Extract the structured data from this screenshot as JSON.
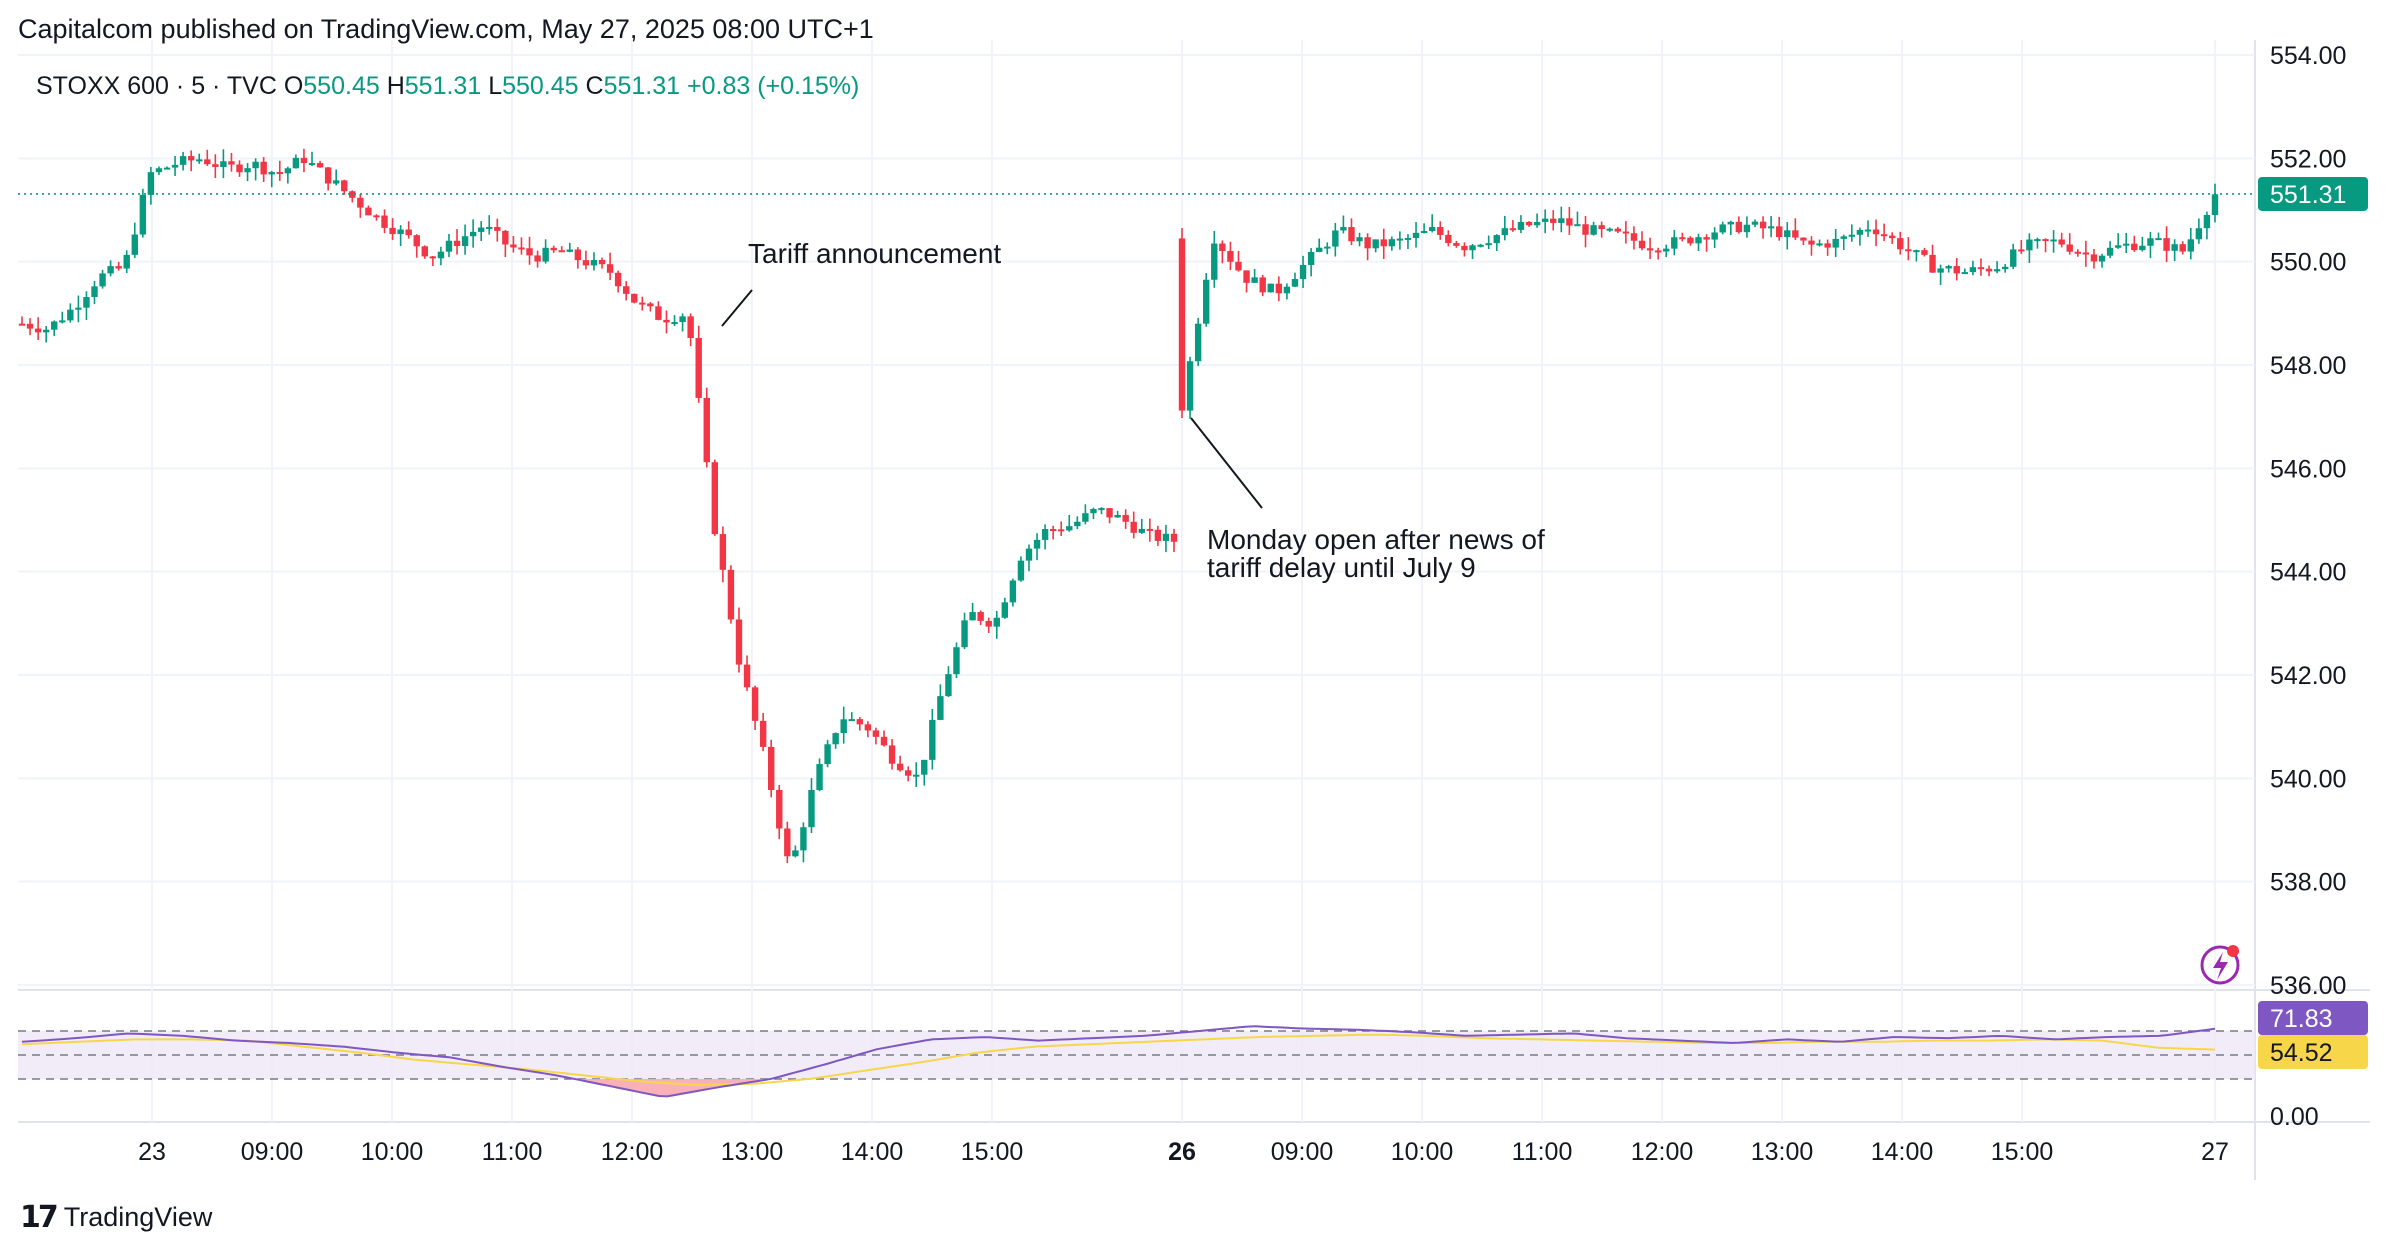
{
  "publisher_line": "Capitalcom published on TradingView.com, May 27, 2025 08:00 UTC+1",
  "branding": {
    "logo_icon": "tradingview-logo-icon",
    "name": "TradingView"
  },
  "ticker": {
    "symbol": "STOXX 600",
    "sep1": "·",
    "interval": "5",
    "sep2": "·",
    "source": "TVC",
    "open_label": "O",
    "open": "550.45",
    "high_label": "H",
    "high": "551.31",
    "low_label": "L",
    "low": "550.45",
    "close_label": "C",
    "close": "551.31",
    "change": "+0.83 (+0.15%)"
  },
  "colors": {
    "up": "#089981",
    "down": "#f23645",
    "rsi": "#7e57c2",
    "rsi_ma": "#f7d64a",
    "grid": "#f0f3fa"
  },
  "price_tag": "551.31",
  "rsi_tag": "71.83",
  "rsi_ma_tag": "54.52",
  "annotations": [
    {
      "id": "tariff-announcement",
      "text": [
        "Tariff announcement"
      ]
    },
    {
      "id": "monday-open",
      "text": [
        "Monday open after news of",
        "tariff delay until July 9"
      ]
    }
  ],
  "chart_data": {
    "type": "candlestick",
    "price_axis": {
      "ticks": [
        "554.00",
        "552.00",
        "550.00",
        "548.00",
        "546.00",
        "544.00",
        "542.00",
        "540.00",
        "538.00",
        "536.00"
      ],
      "range": [
        536,
        554
      ]
    },
    "rsi_axis": {
      "ticks": [
        "0.00"
      ],
      "levels": [
        70,
        50,
        30
      ]
    },
    "time_axis": [
      "23",
      "09:00",
      "10:00",
      "11:00",
      "12:00",
      "13:00",
      "14:00",
      "15:00",
      "26",
      "09:00",
      "10:00",
      "11:00",
      "12:00",
      "13:00",
      "14:00",
      "15:00",
      "27"
    ],
    "time_axis_bold": [
      false,
      false,
      false,
      false,
      false,
      false,
      false,
      false,
      true,
      false,
      false,
      false,
      false,
      false,
      false,
      false,
      false
    ],
    "session1_path": [
      548.8,
      548.7,
      549.1,
      549.7,
      549.9,
      551.7,
      551.9,
      552.0,
      551.8,
      551.9,
      551.7,
      552.0,
      551.6,
      551.2,
      550.8,
      550.5,
      550.1,
      550.4,
      550.7,
      550.3,
      550.1,
      550.2,
      550.0,
      549.8,
      549.2,
      548.9,
      549.0,
      545.0,
      542.3,
      540.4,
      538.2,
      540.0,
      541.2,
      541.0,
      540.4,
      540.0,
      541.8,
      543.2,
      543.0,
      544.3,
      544.8,
      544.9,
      545.2,
      545.0,
      544.7,
      544.6
    ],
    "session2_path": [
      547.2,
      550.5,
      549.7,
      549.4,
      550.0,
      550.6,
      550.3,
      550.4,
      550.6,
      550.3,
      550.5,
      550.7,
      550.8,
      550.6,
      550.5,
      550.3,
      550.4,
      550.6,
      550.7,
      550.6,
      550.3,
      550.4,
      550.7,
      550.3,
      549.9,
      549.8,
      549.9,
      550.3,
      550.4,
      550.1,
      550.3,
      550.4,
      550.2,
      551.31
    ],
    "rsi_path": [
      61,
      64,
      68,
      66,
      62,
      60,
      57,
      52,
      48,
      40,
      33,
      24,
      15,
      23,
      30,
      42,
      55,
      63,
      65,
      62,
      64,
      66,
      70,
      74,
      72,
      71,
      69,
      66,
      67,
      68,
      64,
      62,
      60,
      63,
      61,
      65,
      64,
      66,
      63,
      65,
      66,
      71.83
    ],
    "rsi_ma_path": [
      59,
      61,
      63,
      63,
      62,
      57,
      52,
      46,
      42,
      38,
      33,
      28,
      25,
      26,
      30,
      37,
      44,
      52,
      57,
      59,
      61,
      63,
      65,
      66,
      67,
      66,
      64,
      63,
      62,
      61,
      60,
      60,
      61,
      61,
      62,
      62,
      63,
      62,
      56,
      54.52
    ]
  }
}
